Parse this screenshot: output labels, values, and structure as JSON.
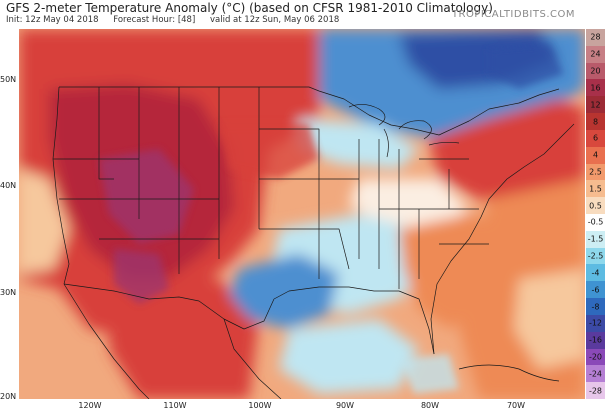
{
  "header": {
    "title": "GFS 2-meter Temperature Anomaly (°C) (based on CFSR 1981-2010 Climatology)",
    "init": "Init: 12z May 04 2018",
    "forecast_hour": "Forecast Hour: [48]",
    "valid": "valid at 12z Sun, May 06 2018",
    "brand": "TROPICALTIDBITS.COM"
  },
  "map": {
    "lat_labels": [
      "50N",
      "40N",
      "30N",
      "20N"
    ],
    "lon_labels": [
      "120W",
      "110W",
      "100W",
      "90W",
      "80W",
      "70W"
    ],
    "colors": {
      "deep_red": "#b5283a",
      "red": "#d8413a",
      "orange": "#ee8a55",
      "light_orange": "#f6c89d",
      "neutral": "#fbeee2",
      "light_blue": "#bfe6f2",
      "blue": "#4e8fd0",
      "deep_blue": "#2d4fa5",
      "magenta": "#9c3570"
    }
  },
  "colorbar": {
    "labels": [
      "28",
      "24",
      "20",
      "16",
      "12",
      "8",
      "6",
      "4",
      "2.5",
      "1.5",
      "0.5",
      "-0.5",
      "-1.5",
      "-2.5",
      "-4",
      "-6",
      "-8",
      "-12",
      "-16",
      "-20",
      "-24",
      "-28"
    ],
    "colors": [
      "#c8a49e",
      "#c77f85",
      "#b95a6a",
      "#a8304a",
      "#9c2b36",
      "#b83430",
      "#d8483d",
      "#e9704f",
      "#f29a6c",
      "#f6bc8f",
      "#f8dcbf",
      "#ffffff",
      "#cdeef4",
      "#8ed8ec",
      "#5dbbe2",
      "#3f93d2",
      "#2e69bd",
      "#3c4aa6",
      "#5a3a9e",
      "#8a49b8",
      "#b57fd4",
      "#e7c6ea"
    ]
  }
}
